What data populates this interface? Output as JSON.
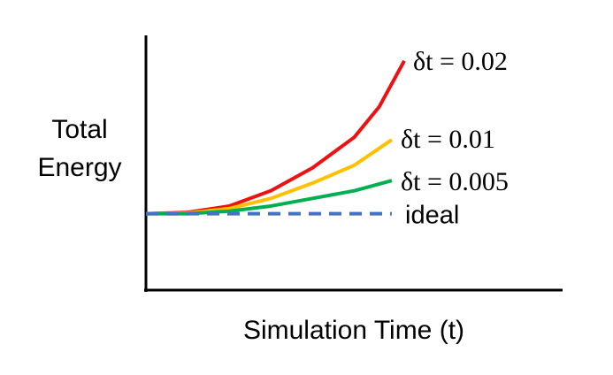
{
  "chart_data": {
    "type": "line",
    "xlabel": "Simulation Time (t)",
    "ylabel": "Total Energy",
    "xlim": [
      0,
      10
    ],
    "ylim": [
      0,
      10
    ],
    "series": [
      {
        "name": "δt = 0.02",
        "color": "#ee1111",
        "linestyle": "solid",
        "x": [
          0,
          1,
          2,
          3,
          4,
          5,
          5.6,
          6.2
        ],
        "values": [
          3.0,
          3.05,
          3.3,
          3.9,
          4.8,
          6.0,
          7.2,
          9.0
        ]
      },
      {
        "name": "δt = 0.01",
        "color": "#ffc000",
        "linestyle": "solid",
        "x": [
          0,
          1,
          2,
          3,
          4,
          5,
          5.9
        ],
        "values": [
          3.0,
          3.02,
          3.2,
          3.6,
          4.2,
          4.9,
          5.9
        ]
      },
      {
        "name": "δt = 0.005",
        "color": "#00b050",
        "linestyle": "solid",
        "x": [
          0,
          1,
          2,
          3,
          4,
          5,
          5.9
        ],
        "values": [
          3.0,
          3.0,
          3.1,
          3.3,
          3.6,
          3.9,
          4.3
        ]
      },
      {
        "name": "ideal",
        "color": "#4472c4",
        "linestyle": "dashed",
        "x": [
          0,
          5.9
        ],
        "values": [
          3.0,
          3.0
        ]
      }
    ]
  }
}
